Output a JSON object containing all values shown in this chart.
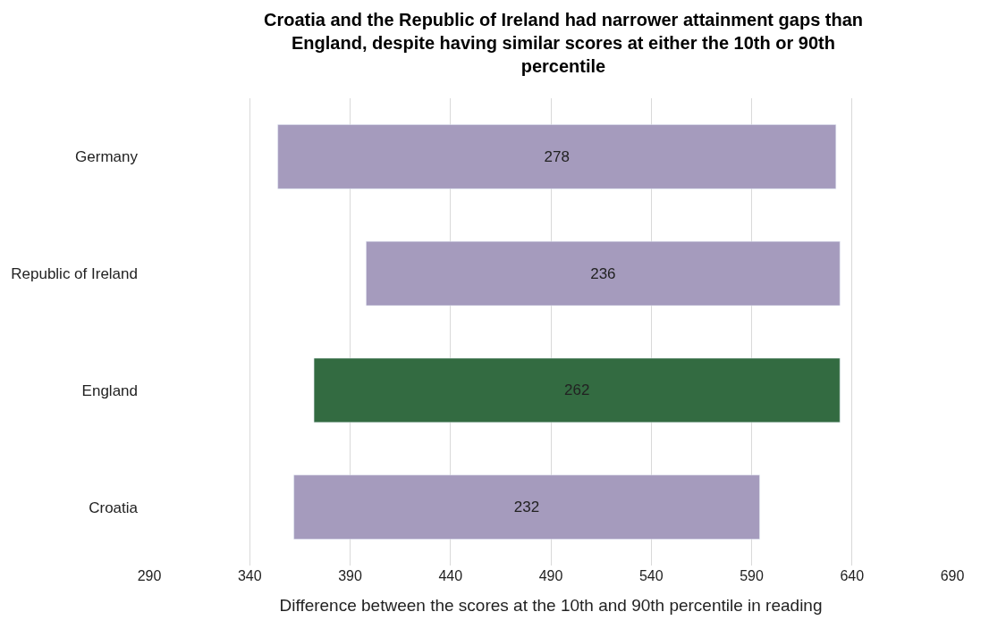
{
  "chart_data": {
    "type": "bar",
    "orientation": "horizontal",
    "title": "Croatia and the Republic of Ireland had narrower attainment gaps than England, despite having similar scores at either the 10th or 90th percentile",
    "xlabel": "Difference between the scores at the 10th and 90th percentile in reading",
    "categories": [
      "Germany",
      "Republic of Ireland",
      "England",
      "Croatia"
    ],
    "values": [
      278,
      236,
      262,
      232
    ],
    "base": [
      354,
      398,
      372,
      362
    ],
    "colors": [
      "#a59bbd",
      "#a59bbd",
      "#336b41",
      "#a59bbd"
    ],
    "data_labels": true,
    "xlim": [
      290,
      690
    ],
    "xticks": [
      290,
      340,
      390,
      440,
      490,
      540,
      590,
      640,
      690
    ],
    "grid": "x"
  }
}
